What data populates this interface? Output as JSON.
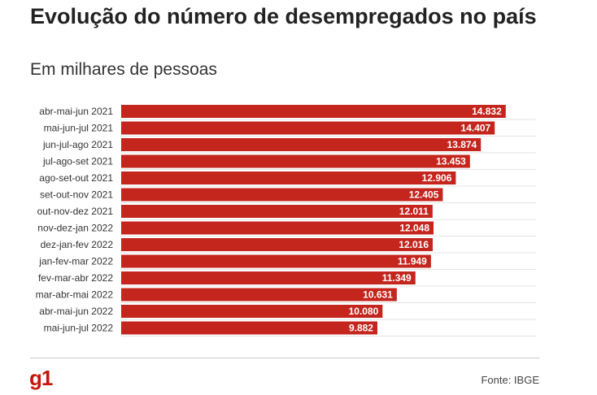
{
  "header": {
    "title": "Evolução do número de desempregados no país",
    "subtitle": "Em milhares de pessoas"
  },
  "footer": {
    "logo": "g1",
    "source": "Fonte: IBGE"
  },
  "colors": {
    "bar": "#c4251d",
    "grid": "#e3e3e3",
    "label": "#333333",
    "value_text": "#ffffff"
  },
  "chart_data": {
    "type": "bar",
    "orientation": "horizontal",
    "categories": [
      "abr-mai-jun 2021",
      "mai-jun-jul 2021",
      "jun-jul-ago 2021",
      "jul-ago-set 2021",
      "ago-set-out 2021",
      "set-out-nov 2021",
      "out-nov-dez 2021",
      "nov-dez-jan 2022",
      "dez-jan-fev 2022",
      "jan-fev-mar 2022",
      "fev-mar-abr 2022",
      "mar-abr-mai 2022",
      "abr-mai-jun 2022",
      "mai-jun-jul 2022"
    ],
    "values": [
      14832,
      14407,
      13874,
      13453,
      12906,
      12405,
      12011,
      12048,
      12016,
      11949,
      11349,
      10631,
      10080,
      9882
    ],
    "value_labels": [
      "14.832",
      "14.407",
      "13.874",
      "13.453",
      "12.906",
      "12.405",
      "12.011",
      "12.048",
      "12.016",
      "11.949",
      "11.349",
      "10.631",
      "10.080",
      "9.882"
    ],
    "xlim": [
      0,
      16000
    ],
    "grid": true,
    "legend": "none"
  }
}
